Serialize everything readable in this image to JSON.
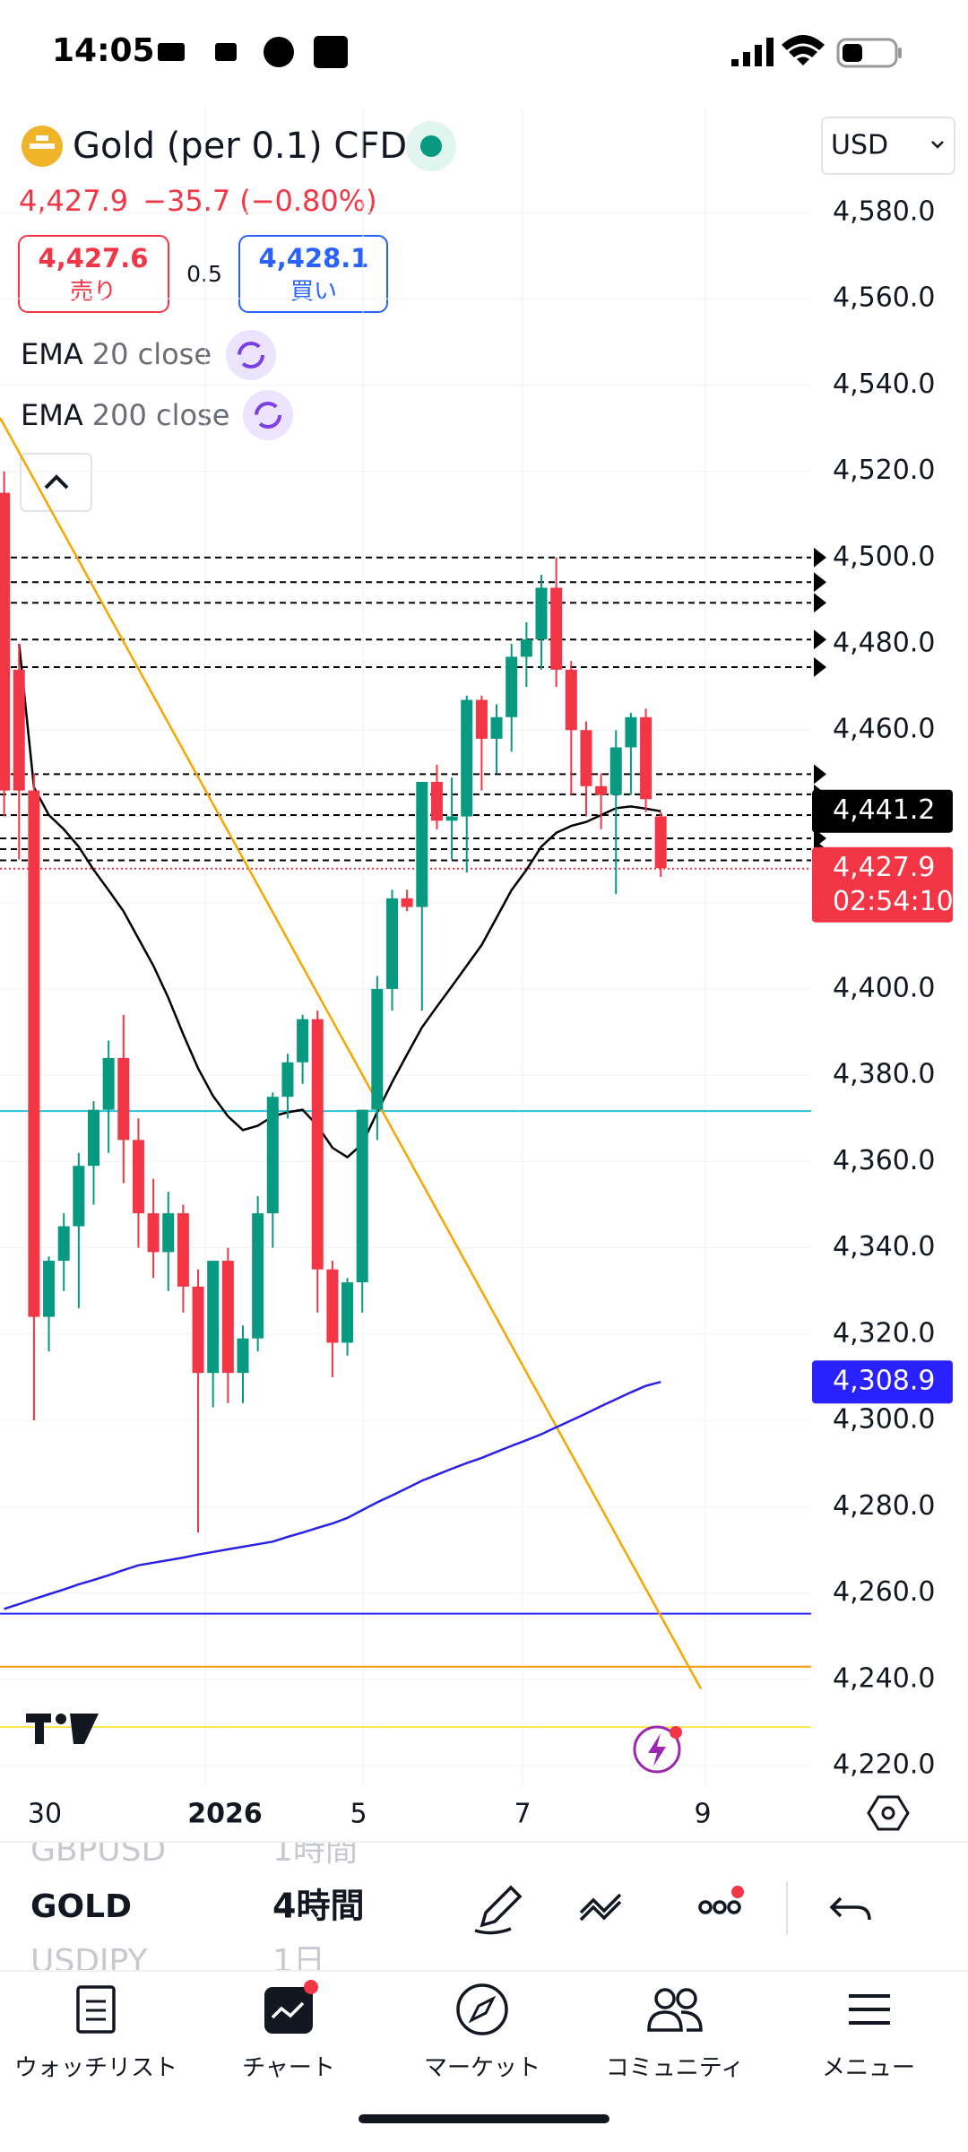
{
  "status_bar": {
    "time": "14:05"
  },
  "header": {
    "symbol": "Gold (per 0.1) CFD",
    "currency": "USD"
  },
  "quote": {
    "price": "4,427.9",
    "change": "−35.7",
    "change_pct": "(−0.80%)"
  },
  "trade": {
    "sell_price": "4,427.6",
    "sell_label": "売り",
    "spread": "0.5",
    "buy_price": "4,428.1",
    "buy_label": "買い"
  },
  "indicators": [
    {
      "name": "EMA",
      "params": "20 close"
    },
    {
      "name": "EMA",
      "params": "200 close"
    }
  ],
  "chart_data": {
    "type": "candlestick",
    "up_color": "#089981",
    "down_color": "#f23645",
    "open": [
      4515,
      4474,
      4446,
      4324,
      4337,
      4345,
      4359,
      4372,
      4384,
      4365,
      4348,
      4339,
      4348,
      4331,
      4311,
      4337,
      4311,
      4319,
      4348,
      4375,
      4383,
      4393,
      4335,
      4318,
      4332,
      4372,
      4400,
      4421,
      4419,
      4448,
      4439,
      4440,
      4467,
      4458,
      4463,
      4477,
      4481,
      4493,
      4474,
      4460,
      4447,
      4445,
      4456,
      4463,
      4440
    ],
    "high": [
      4520,
      4480,
      4450,
      4338,
      4348,
      4362,
      4374,
      4388,
      4394,
      4370,
      4356,
      4353,
      4350,
      4335,
      4337,
      4340,
      4322,
      4352,
      4376,
      4385,
      4394,
      4395,
      4337,
      4333,
      4372,
      4403,
      4423,
      4423,
      4448,
      4452,
      4449,
      4468,
      4468,
      4466,
      4480,
      4485,
      4496,
      4500,
      4476,
      4462,
      4450,
      4460,
      4464,
      4465,
      4441
    ],
    "low": [
      4440,
      4430,
      4300,
      4316,
      4330,
      4326,
      4350,
      4362,
      4355,
      4340,
      4333,
      4330,
      4325,
      4274,
      4303,
      4304,
      4304,
      4316,
      4340,
      4370,
      4378,
      4325,
      4310,
      4315,
      4325,
      4365,
      4395,
      4418,
      4395,
      4437,
      4430,
      4427,
      4446,
      4450,
      4455,
      4470,
      4474,
      4470,
      4445,
      4440,
      4437,
      4422,
      4445,
      4441,
      4426
    ],
    "close": [
      4446,
      4446,
      4324,
      4337,
      4345,
      4359,
      4372,
      4384,
      4365,
      4348,
      4339,
      4348,
      4331,
      4311,
      4337,
      4311,
      4319,
      4348,
      4375,
      4383,
      4393,
      4335,
      4318,
      4332,
      4372,
      4400,
      4421,
      4419,
      4448,
      4439,
      4440,
      4467,
      4458,
      4463,
      4477,
      4481,
      4493,
      4474,
      4460,
      4447,
      4445,
      4456,
      4463,
      4444,
      4428
    ],
    "ema_lines": [
      {
        "color": "#000000",
        "values": [
          null,
          4480,
          4446.7,
          4440.3,
          4437,
          4433,
          4427.6,
          4422.9,
          4418,
          4411.7,
          4405.4,
          4398,
          4389.5,
          4381.6,
          4375.2,
          4370.5,
          4367.3,
          4368.3,
          4370.5,
          4371.4,
          4372,
          4368.3,
          4363.2,
          4361,
          4364.1,
          4371.4,
          4378.4,
          4384.8,
          4391.1,
          4395.9,
          4400.6,
          4405.4,
          4410.2,
          4416.5,
          4422.9,
          4427.6,
          4433,
          4436.2,
          4437.8,
          4438.7,
          4440.3,
          4441.9,
          4442.3,
          4441.8,
          4441.2
        ]
      },
      {
        "color": "#2a21e6",
        "values": [
          4256.3,
          4257.4,
          4258.6,
          4259.7,
          4260.8,
          4262.0,
          4263.0,
          4264.1,
          4265.3,
          4266.4,
          4267.0,
          4267.6,
          4268.2,
          4268.9,
          4269.5,
          4270.1,
          4270.7,
          4271.3,
          4271.9,
          4273.0,
          4274.0,
          4275.1,
          4276.1,
          4277.4,
          4279.2,
          4281.0,
          4282.6,
          4284.3,
          4286.0,
          4287.4,
          4288.8,
          4290.1,
          4291.3,
          4292.7,
          4294.1,
          4295.4,
          4296.8,
          4298.4,
          4300.0,
          4301.6,
          4303.3,
          4304.9,
          4306.5,
          4308.0,
          4308.9
        ]
      }
    ],
    "trendline": {
      "color": "#f7a600",
      "values": [
        4532.4,
        4237.8
      ]
    },
    "levels": [
      {
        "value": 4500,
        "color": "#000000",
        "style": "dashed"
      },
      {
        "value": 4494.3,
        "color": "#000000",
        "style": "dashed"
      },
      {
        "value": 4489.5,
        "color": "#000000",
        "style": "dashed"
      },
      {
        "value": 4481,
        "color": "#000000",
        "style": "dashed"
      },
      {
        "value": 4474.6,
        "color": "#000000",
        "style": "dashed"
      },
      {
        "value": 4449.8,
        "color": "#000000",
        "style": "dashed"
      },
      {
        "value": 4445.1,
        "color": "#000000",
        "style": "dashed"
      },
      {
        "value": 4440.3,
        "color": "#000000",
        "style": "dashed"
      },
      {
        "value": 4434.9,
        "color": "#000000",
        "style": "dashed"
      },
      {
        "value": 4432.4,
        "color": "#000000",
        "style": "dashed"
      },
      {
        "value": 4429.8,
        "color": "#000000",
        "style": "dashed"
      },
      {
        "value": 4427.9,
        "color": "#f23645",
        "style": "dotted"
      },
      {
        "value": 4371.7,
        "color": "#26c6da",
        "style": "solid"
      },
      {
        "value": 4255.2,
        "color": "#2a2aff",
        "style": "solid"
      },
      {
        "value": 4242.9,
        "color": "#ff9800",
        "style": "solid"
      },
      {
        "value": 4228.9,
        "color": "#ffe44d",
        "style": "solid"
      }
    ],
    "price_tags": [
      {
        "value": 4441.2,
        "label": "4,441.2",
        "color": "#000000"
      },
      {
        "value": 4427.9,
        "label": "4,427.9",
        "color": "#f23645",
        "countdown": "02:54:10"
      },
      {
        "value": 4308.9,
        "label": "4,308.9",
        "color": "#2a21ff"
      }
    ],
    "ylim": [
      4214.8,
      4604.5
    ],
    "yticks": [
      {
        "value": 4220,
        "label": "4,220.0"
      },
      {
        "value": 4240,
        "label": "4,240.0"
      },
      {
        "value": 4260,
        "label": "4,260.0"
      },
      {
        "value": 4280,
        "label": "4,280.0"
      },
      {
        "value": 4300,
        "label": "4,300.0"
      },
      {
        "value": 4320,
        "label": "4,320.0"
      },
      {
        "value": 4340,
        "label": "4,340.0"
      },
      {
        "value": 4360,
        "label": "4,360.0"
      },
      {
        "value": 4380,
        "label": "4,380.0"
      },
      {
        "value": 4400,
        "label": "4,400.0"
      },
      {
        "value": 4420,
        "label": "4,420.0"
      },
      {
        "value": 4440,
        "label": "4,440.0"
      },
      {
        "value": 4460,
        "label": "4,460.0"
      },
      {
        "value": 4480,
        "label": "4,480.0"
      },
      {
        "value": 4500,
        "label": "4,500.0"
      },
      {
        "value": 4520,
        "label": "4,520.0"
      },
      {
        "value": 4540,
        "label": "4,540.0"
      },
      {
        "value": 4560,
        "label": "4,560.0"
      },
      {
        "value": 4580,
        "label": "4,580.0"
      }
    ],
    "x_labels": [
      "30",
      "2026",
      "5",
      "7",
      "9"
    ],
    "grid": true
  },
  "symbol_panel": {
    "symbols": [
      "GBPUSD",
      "GOLD",
      "USDJPY"
    ],
    "timeframes": [
      "1時間",
      "4時間",
      "1日"
    ]
  },
  "nav": [
    "ウォッチリスト",
    "チャート",
    "マーケット",
    "コミュニティ",
    "メニュー"
  ]
}
